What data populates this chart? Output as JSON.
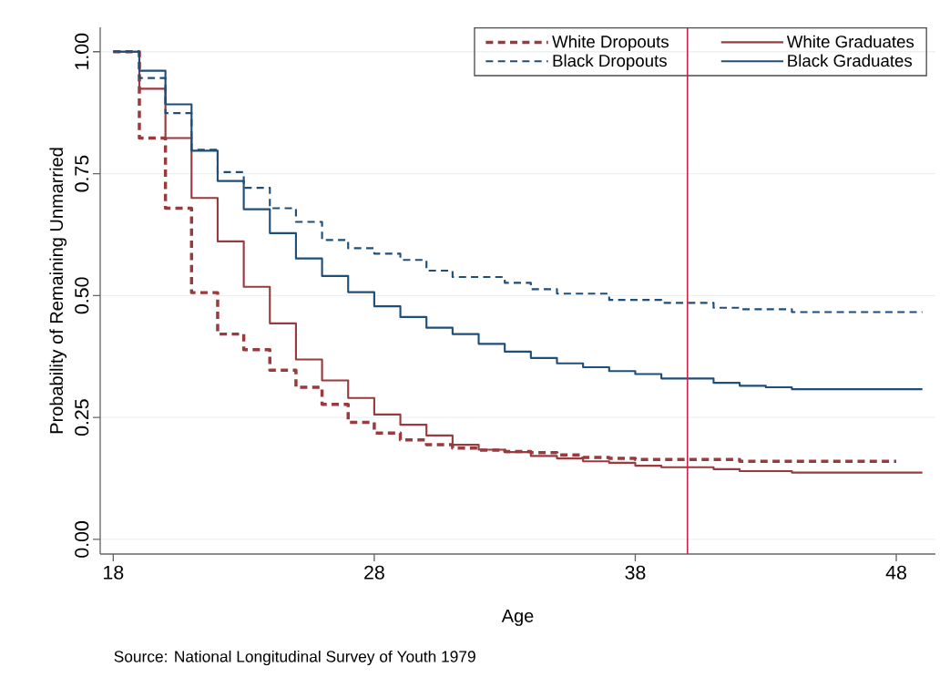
{
  "chart_data": {
    "type": "step",
    "xlabel": "Age",
    "ylabel": "Probability of Remaining Unmarried",
    "annotations": [
      "Source: National Longitudinal Survey of Youth 1979"
    ],
    "xlim": [
      17.5,
      49.5
    ],
    "ylim": [
      -0.03,
      1.05
    ],
    "xticks": [
      18,
      28,
      38,
      48
    ],
    "yticks": [
      {
        "value": 0,
        "label": "0.00"
      },
      {
        "value": 0.25,
        "label": "0.25"
      },
      {
        "value": 0.5,
        "label": "0.50"
      },
      {
        "value": 0.75,
        "label": "0.75"
      },
      {
        "value": 1,
        "label": "1.00"
      }
    ],
    "grid": "y",
    "legend": "top right",
    "ref_lines": [
      {
        "axis": "x",
        "value": 40,
        "color": "#cc2244"
      }
    ],
    "series": [
      {
        "name": "White Dropouts",
        "color": "#983a3e",
        "line_style": "dashed",
        "x": [
          18,
          19,
          20,
          21,
          22,
          23,
          24,
          25,
          26,
          27,
          28,
          29,
          30,
          31,
          32,
          33,
          34,
          35,
          36,
          37,
          38,
          42,
          48
        ],
        "values": [
          1.0,
          0.823,
          0.679,
          0.506,
          0.421,
          0.389,
          0.347,
          0.312,
          0.277,
          0.24,
          0.218,
          0.204,
          0.194,
          0.187,
          0.183,
          0.18,
          0.178,
          0.173,
          0.168,
          0.166,
          0.164,
          0.16,
          0.16
        ]
      },
      {
        "name": "White Graduates",
        "color": "#983a3e",
        "line_style": "solid",
        "x": [
          18,
          19,
          20,
          21,
          22,
          23,
          24,
          25,
          26,
          27,
          28,
          29,
          30,
          31,
          32,
          33,
          34,
          35,
          36,
          37,
          38,
          39,
          41,
          42,
          44,
          49
        ],
        "values": [
          1.0,
          0.924,
          0.823,
          0.7,
          0.611,
          0.518,
          0.443,
          0.369,
          0.326,
          0.29,
          0.256,
          0.235,
          0.213,
          0.194,
          0.184,
          0.179,
          0.171,
          0.166,
          0.16,
          0.157,
          0.151,
          0.148,
          0.144,
          0.14,
          0.137,
          0.137
        ]
      },
      {
        "name": "Black Dropouts",
        "color": "#1f4e79",
        "line_style": "dashed",
        "x": [
          18,
          19,
          20,
          21,
          22,
          23,
          24,
          25,
          26,
          27,
          28,
          29,
          30,
          31,
          33,
          34,
          35,
          37,
          39,
          41,
          42,
          44,
          49
        ],
        "values": [
          1.0,
          0.946,
          0.874,
          0.799,
          0.753,
          0.721,
          0.679,
          0.651,
          0.614,
          0.597,
          0.586,
          0.573,
          0.551,
          0.538,
          0.526,
          0.513,
          0.504,
          0.491,
          0.485,
          0.475,
          0.472,
          0.466,
          0.466
        ]
      },
      {
        "name": "Black Graduates",
        "color": "#1f4e79",
        "line_style": "solid",
        "x": [
          18,
          19,
          20,
          21,
          22,
          23,
          24,
          25,
          26,
          27,
          28,
          29,
          30,
          31,
          32,
          33,
          34,
          35,
          36,
          37,
          38,
          39,
          41,
          42,
          43,
          44,
          49
        ],
        "values": [
          1.0,
          0.961,
          0.892,
          0.797,
          0.735,
          0.677,
          0.628,
          0.576,
          0.54,
          0.507,
          0.478,
          0.456,
          0.434,
          0.421,
          0.401,
          0.385,
          0.372,
          0.361,
          0.353,
          0.345,
          0.339,
          0.33,
          0.321,
          0.315,
          0.312,
          0.308,
          0.308
        ]
      }
    ]
  }
}
